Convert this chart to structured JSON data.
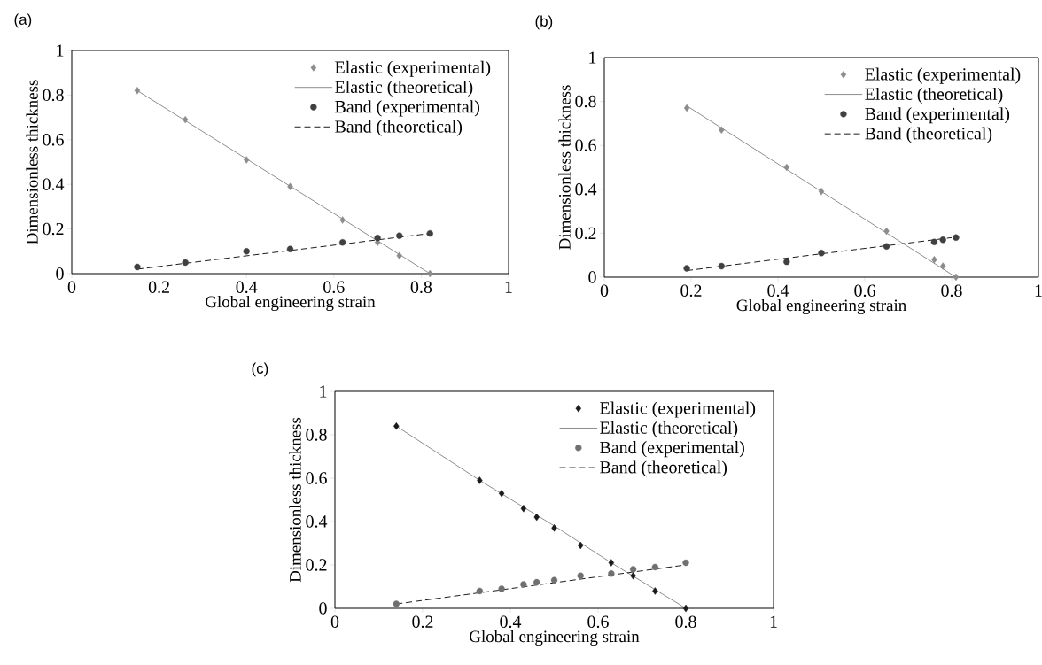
{
  "chart_data": [
    {
      "type": "line",
      "title": "(a)",
      "xlabel": "Global engineering strain",
      "ylabel": "Dimensionless thickness",
      "xlim": [
        0,
        1
      ],
      "ylim": [
        0,
        1
      ],
      "xticks": [
        0,
        0.2,
        0.4,
        0.6,
        0.8,
        1
      ],
      "yticks": [
        0,
        0.2,
        0.4,
        0.6,
        0.8,
        1
      ],
      "grid": false,
      "legend": "top right",
      "series": [
        {
          "name": "Elastic (experimental)",
          "type": "scatter",
          "marker": "diamond",
          "color": "#8c8c8c",
          "x": [
            0.15,
            0.26,
            0.4,
            0.5,
            0.62,
            0.7,
            0.75,
            0.82
          ],
          "values": [
            0.82,
            0.69,
            0.51,
            0.39,
            0.24,
            0.14,
            0.08,
            0.0
          ]
        },
        {
          "name": "Elastic (theoretical)",
          "type": "line",
          "line_style": "solid",
          "color": "#808080",
          "x": [
            0.15,
            0.82
          ],
          "values": [
            0.82,
            0.0
          ]
        },
        {
          "name": "Band (experimental)",
          "type": "scatter",
          "marker": "circle",
          "color": "#404040",
          "x": [
            0.15,
            0.26,
            0.4,
            0.5,
            0.62,
            0.7,
            0.75,
            0.82
          ],
          "values": [
            0.03,
            0.05,
            0.1,
            0.11,
            0.14,
            0.16,
            0.17,
            0.18
          ]
        },
        {
          "name": "Band (theoretical)",
          "type": "line",
          "line_style": "dashed",
          "color": "#000000",
          "x": [
            0.15,
            0.82
          ],
          "values": [
            0.02,
            0.18
          ]
        }
      ]
    },
    {
      "type": "line",
      "title": "(b)",
      "xlabel": "Global engineering strain",
      "ylabel": "Dimensionless thickness",
      "xlim": [
        0,
        1
      ],
      "ylim": [
        0,
        1
      ],
      "xticks": [
        0,
        0.2,
        0.4,
        0.6,
        0.8,
        1
      ],
      "yticks": [
        0,
        0.2,
        0.4,
        0.6,
        0.8,
        1
      ],
      "grid": false,
      "legend": "top right",
      "series": [
        {
          "name": "Elastic (experimental)",
          "type": "scatter",
          "marker": "diamond",
          "color": "#8c8c8c",
          "x": [
            0.19,
            0.27,
            0.42,
            0.5,
            0.65,
            0.76,
            0.78,
            0.81
          ],
          "values": [
            0.77,
            0.67,
            0.5,
            0.39,
            0.21,
            0.08,
            0.05,
            0.0
          ]
        },
        {
          "name": "Elastic (theoretical)",
          "type": "line",
          "line_style": "solid",
          "color": "#808080",
          "x": [
            0.19,
            0.81
          ],
          "values": [
            0.78,
            0.0
          ]
        },
        {
          "name": "Band (experimental)",
          "type": "scatter",
          "marker": "circle",
          "color": "#404040",
          "x": [
            0.19,
            0.27,
            0.42,
            0.5,
            0.65,
            0.76,
            0.78,
            0.81
          ],
          "values": [
            0.04,
            0.05,
            0.07,
            0.11,
            0.14,
            0.16,
            0.17,
            0.18
          ]
        },
        {
          "name": "Band (theoretical)",
          "type": "line",
          "line_style": "dashed",
          "color": "#000000",
          "x": [
            0.19,
            0.8
          ],
          "values": [
            0.03,
            0.18
          ]
        }
      ]
    },
    {
      "type": "line",
      "title": "(c)",
      "xlabel": "Global engineering strain",
      "ylabel": "Dimensionless thickness",
      "xlim": [
        0,
        1
      ],
      "ylim": [
        0,
        1
      ],
      "xticks": [
        0,
        0.2,
        0.4,
        0.6,
        0.8,
        1
      ],
      "yticks": [
        0,
        0.2,
        0.4,
        0.6,
        0.8,
        1
      ],
      "grid": false,
      "legend": "top right",
      "series": [
        {
          "name": "Elastic (experimental)",
          "type": "scatter",
          "marker": "diamond",
          "color": "#1a1a1a",
          "x": [
            0.14,
            0.33,
            0.38,
            0.43,
            0.46,
            0.5,
            0.56,
            0.63,
            0.68,
            0.73,
            0.8
          ],
          "values": [
            0.84,
            0.59,
            0.53,
            0.46,
            0.42,
            0.37,
            0.29,
            0.21,
            0.15,
            0.08,
            0.0
          ]
        },
        {
          "name": "Elastic (theoretical)",
          "type": "line",
          "line_style": "solid",
          "color": "#808080",
          "x": [
            0.14,
            0.33,
            0.5,
            0.63,
            0.8
          ],
          "values": [
            0.84,
            0.59,
            0.38,
            0.21,
            0.0
          ]
        },
        {
          "name": "Band (experimental)",
          "type": "scatter",
          "marker": "circle",
          "color": "#707070",
          "x": [
            0.14,
            0.33,
            0.38,
            0.43,
            0.46,
            0.5,
            0.56,
            0.63,
            0.68,
            0.73,
            0.8
          ],
          "values": [
            0.02,
            0.08,
            0.09,
            0.11,
            0.12,
            0.13,
            0.15,
            0.16,
            0.18,
            0.19,
            0.21
          ]
        },
        {
          "name": "Band (theoretical)",
          "type": "line",
          "line_style": "dashed",
          "color": "#000000",
          "x": [
            0.14,
            0.8
          ],
          "values": [
            0.02,
            0.2
          ]
        }
      ]
    }
  ]
}
